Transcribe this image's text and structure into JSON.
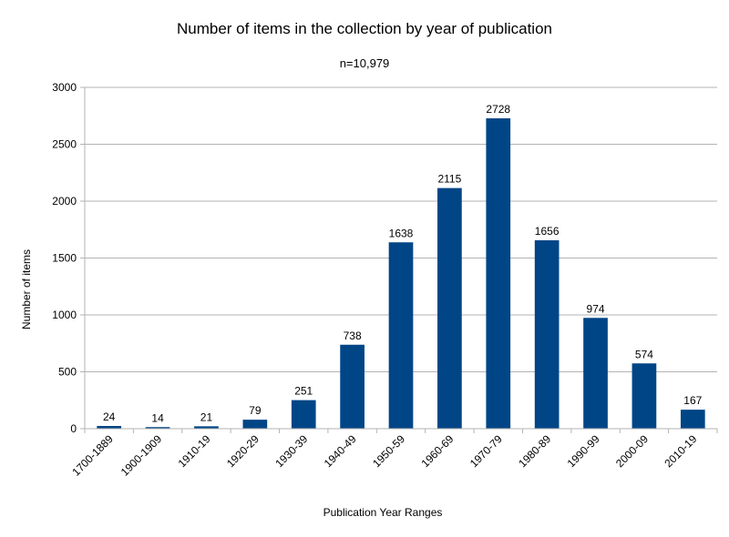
{
  "chart_data": {
    "type": "bar",
    "title": "Number of items in the collection by year of publication",
    "subtitle": "n=10,979",
    "xlabel": "Publication Year Ranges",
    "ylabel": "Number of items",
    "ylim": [
      0,
      3000
    ],
    "yticks": [
      "0",
      "500",
      "1000",
      "1500",
      "2000",
      "2500",
      "3000"
    ],
    "categories": [
      "1700-1889",
      "1900-1909",
      "1910-19",
      "1920-29",
      "1930-39",
      "1940-49",
      "1950-59",
      "1960-69",
      "1970-79",
      "1980-89",
      "1990-99",
      "2000-09",
      "2010-19"
    ],
    "values": [
      24,
      14,
      21,
      79,
      251,
      738,
      1638,
      2115,
      2728,
      1656,
      974,
      574,
      167
    ],
    "bar_color": "#004586",
    "grid": true,
    "legend": "none"
  }
}
